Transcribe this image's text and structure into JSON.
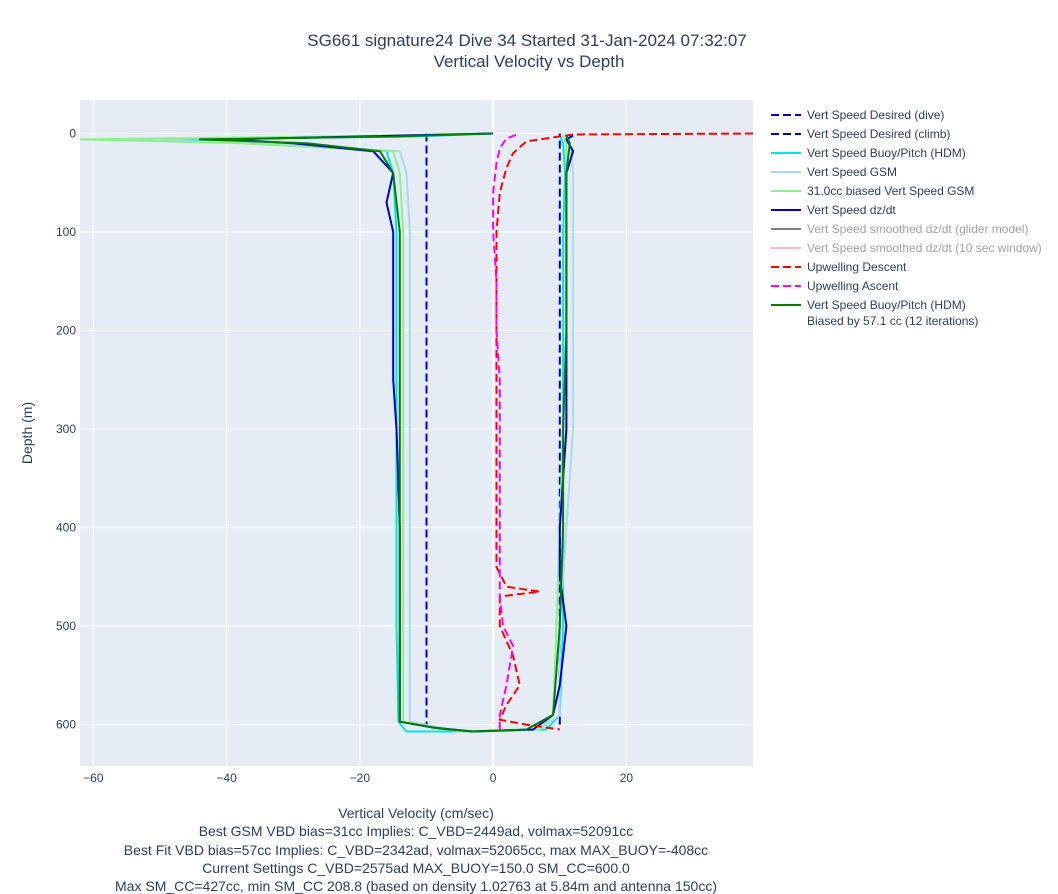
{
  "chart_data": {
    "type": "line",
    "title": "SG661 signature24 Dive 34 Started 31-Jan-2024 07:32:07",
    "subtitle": "Vertical Velocity vs Depth",
    "xlabel": "Vertical Velocity (cm/sec)",
    "ylabel": "Depth (m)",
    "xlim": [
      -62,
      39
    ],
    "ylim": [
      642,
      -34
    ],
    "y_reversed": true,
    "grid": true,
    "legend_position": "right",
    "x_ticks": [
      -60,
      -40,
      -20,
      0,
      20
    ],
    "x_tick_labels": [
      "−60",
      "−40",
      "−20",
      "0",
      "20"
    ],
    "y_ticks": [
      0,
      100,
      200,
      300,
      400,
      500,
      600
    ],
    "y_tick_labels": [
      "0",
      "100",
      "200",
      "300",
      "400",
      "500",
      "600"
    ],
    "series": [
      {
        "name": "Vert Speed Desired (dive)",
        "color": "#0000cd",
        "dash": "dash",
        "muted": false,
        "points": [
          [
            -10,
            0
          ],
          [
            -10,
            600
          ]
        ]
      },
      {
        "name": "Vert Speed Desired (climb)",
        "color": "#0000cd",
        "dash": "dash",
        "muted": false,
        "points": [
          [
            10,
            600
          ],
          [
            10,
            0
          ]
        ]
      },
      {
        "name": "Vert Speed Buoy/Pitch (HDM)",
        "color": "#00e6e6",
        "dash": "solid",
        "muted": false,
        "points": [
          [
            0,
            0
          ],
          [
            -12,
            3
          ],
          [
            -50,
            6
          ],
          [
            -30,
            10
          ],
          [
            -16,
            18
          ],
          [
            -15,
            40
          ],
          [
            -14.5,
            100
          ],
          [
            -14.5,
            200
          ],
          [
            -14.5,
            300
          ],
          [
            -14.5,
            400
          ],
          [
            -14.5,
            500
          ],
          [
            -14.2,
            597
          ],
          [
            -13,
            607
          ],
          [
            -3,
            607
          ],
          [
            8,
            605
          ],
          [
            10,
            590
          ],
          [
            10.5,
            500
          ],
          [
            10.5,
            400
          ],
          [
            10.5,
            300
          ],
          [
            10.5,
            200
          ],
          [
            10.5,
            100
          ],
          [
            10.8,
            40
          ],
          [
            10.5,
            10
          ],
          [
            10,
            2
          ]
        ]
      },
      {
        "name": "Vert Speed GSM",
        "color": "#add8e6",
        "dash": "solid",
        "muted": false,
        "points": [
          [
            0,
            0
          ],
          [
            -20,
            3
          ],
          [
            -55,
            6
          ],
          [
            -35,
            10
          ],
          [
            -14,
            18
          ],
          [
            -13,
            40
          ],
          [
            -12.5,
            100
          ],
          [
            -12.5,
            200
          ],
          [
            -12.5,
            300
          ],
          [
            -12.5,
            400
          ],
          [
            -12.5,
            500
          ],
          [
            -12.5,
            597
          ],
          [
            -5,
            607
          ],
          [
            7,
            605
          ],
          [
            10,
            590
          ],
          [
            10,
            500
          ],
          [
            11,
            400
          ],
          [
            12,
            300
          ],
          [
            12,
            200
          ],
          [
            12,
            100
          ],
          [
            12,
            40
          ],
          [
            11.5,
            10
          ],
          [
            11,
            2
          ]
        ]
      },
      {
        "name": "31.0cc biased Vert Speed GSM",
        "color": "#90ee90",
        "dash": "solid",
        "muted": false,
        "points": [
          [
            0,
            0
          ],
          [
            -24,
            3
          ],
          [
            -62,
            6
          ],
          [
            -38,
            10
          ],
          [
            -15,
            18
          ],
          [
            -14,
            40
          ],
          [
            -13.5,
            100
          ],
          [
            -13.5,
            200
          ],
          [
            -13.5,
            300
          ],
          [
            -13.5,
            400
          ],
          [
            -13.5,
            500
          ],
          [
            -13.5,
            597
          ],
          [
            -5,
            607
          ],
          [
            7,
            605
          ],
          [
            9,
            590
          ],
          [
            9.5,
            500
          ],
          [
            10,
            400
          ],
          [
            10.5,
            300
          ],
          [
            11,
            200
          ],
          [
            11,
            100
          ],
          [
            11,
            40
          ],
          [
            11,
            10
          ],
          [
            10.5,
            2
          ]
        ]
      },
      {
        "name": "Vert Speed dz/dt",
        "color": "#0000cd",
        "dash": "solid",
        "muted": false,
        "points": [
          [
            0,
            0
          ],
          [
            -20,
            3
          ],
          [
            -40,
            6
          ],
          [
            -30,
            10
          ],
          [
            -18,
            18
          ],
          [
            -15,
            40
          ],
          [
            -16,
            70
          ],
          [
            -15,
            100
          ],
          [
            -15,
            200
          ],
          [
            -15,
            250
          ],
          [
            -14.5,
            300
          ],
          [
            -14,
            400
          ],
          [
            -14,
            500
          ],
          [
            -14,
            597
          ],
          [
            -9,
            603
          ],
          [
            -3,
            607
          ],
          [
            6,
            605
          ],
          [
            9,
            590
          ],
          [
            10,
            560
          ],
          [
            11,
            500
          ],
          [
            10,
            450
          ],
          [
            10,
            400
          ],
          [
            11,
            300
          ],
          [
            11,
            200
          ],
          [
            11,
            100
          ],
          [
            11,
            60
          ],
          [
            11,
            40
          ],
          [
            12,
            18
          ],
          [
            11,
            6
          ],
          [
            12,
            2
          ]
        ]
      },
      {
        "name": "Vert Speed smoothed dz/dt (glider model)",
        "color": "#808080",
        "dash": "solid",
        "muted": true,
        "points": []
      },
      {
        "name": "Vert Speed smoothed dz/dt (10 sec window)",
        "color": "#ffb6c1",
        "dash": "solid",
        "muted": true,
        "points": []
      },
      {
        "name": "Upwelling Descent",
        "color": "#ff0000",
        "dash": "dash",
        "muted": false,
        "points": [
          [
            39,
            0
          ],
          [
            12,
            1
          ],
          [
            5,
            8
          ],
          [
            3,
            20
          ],
          [
            2,
            35
          ],
          [
            1,
            60
          ],
          [
            0.5,
            100
          ],
          [
            0.5,
            150
          ],
          [
            0.5,
            200
          ],
          [
            0.5,
            250
          ],
          [
            0.5,
            300
          ],
          [
            0.5,
            350
          ],
          [
            0.5,
            400
          ],
          [
            0.5,
            440
          ],
          [
            2,
            460
          ],
          [
            7,
            465
          ],
          [
            1,
            470
          ],
          [
            1,
            500
          ],
          [
            3,
            530
          ],
          [
            4,
            560
          ],
          [
            2,
            580
          ],
          [
            1,
            595
          ],
          [
            5,
            600
          ],
          [
            10,
            605
          ]
        ]
      },
      {
        "name": "Upwelling Ascent",
        "color": "#ff00ff",
        "dash": "dash",
        "muted": false,
        "points": [
          [
            1,
            605
          ],
          [
            1,
            590
          ],
          [
            2,
            560
          ],
          [
            3,
            520
          ],
          [
            1.5,
            500
          ],
          [
            1,
            470
          ],
          [
            1,
            450
          ],
          [
            1,
            420
          ],
          [
            1,
            400
          ],
          [
            1,
            350
          ],
          [
            1,
            300
          ],
          [
            1,
            250
          ],
          [
            0.5,
            200
          ],
          [
            0.5,
            150
          ],
          [
            0,
            100
          ],
          [
            0,
            60
          ],
          [
            0.5,
            30
          ],
          [
            1,
            15
          ],
          [
            2,
            5
          ],
          [
            4,
            0
          ]
        ]
      },
      {
        "name": "Vert Speed Buoy/Pitch (HDM)",
        "name_line2": "Biased by 57.1 cc (12 iterations)",
        "color": "#008000",
        "dash": "solid",
        "muted": false,
        "points": [
          [
            0,
            0
          ],
          [
            -15,
            3
          ],
          [
            -44,
            6
          ],
          [
            -28,
            10
          ],
          [
            -17,
            18
          ],
          [
            -15,
            40
          ],
          [
            -14,
            100
          ],
          [
            -14,
            200
          ],
          [
            -14,
            300
          ],
          [
            -14,
            400
          ],
          [
            -14,
            500
          ],
          [
            -14,
            597
          ],
          [
            -8,
            604
          ],
          [
            -3,
            607
          ],
          [
            5,
            605
          ],
          [
            9,
            590
          ],
          [
            10,
            500
          ],
          [
            10.5,
            400
          ],
          [
            10.5,
            300
          ],
          [
            11,
            200
          ],
          [
            11,
            100
          ],
          [
            11,
            40
          ],
          [
            11.5,
            10
          ],
          [
            11,
            2
          ]
        ]
      }
    ]
  },
  "captions": [
    "Best GSM VBD bias=31cc Implies: C_VBD=2449ad, volmax=52091cc",
    "Best Fit VBD bias=57cc Implies: C_VBD=2342ad, volmax=52065cc, max MAX_BUOY=-408cc",
    "Current Settings C_VBD=2575ad MAX_BUOY=150.0 SM_CC=600.0",
    "Max SM_CC=427cc, min SM_CC 208.8 (based on density 1.02763 at 5.84m and antenna 150cc)"
  ],
  "colors": {
    "plot_background": "#e5ecf6",
    "grid": "#ffffff",
    "text": "#2a3f5f"
  }
}
